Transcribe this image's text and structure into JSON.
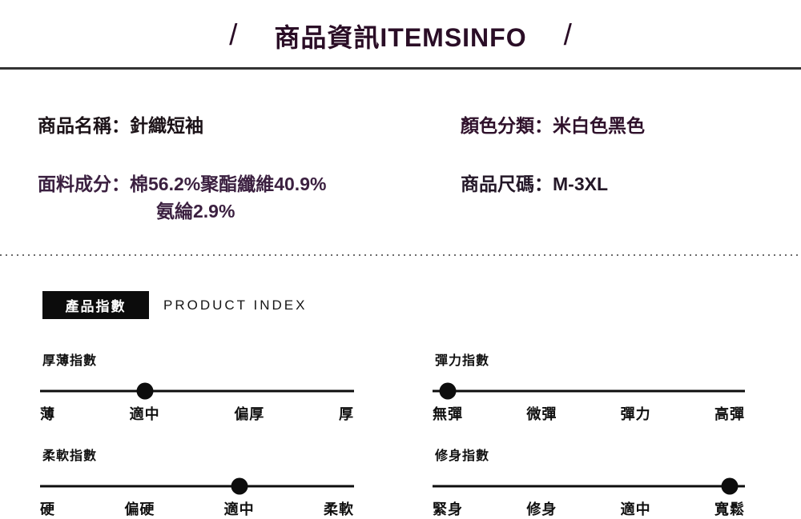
{
  "colors": {
    "title": "#2a0d26",
    "product_name_text": "#1b1217",
    "color_category_text": "#2f112b",
    "fabric_text": "#3b2040",
    "size_text": "#241828",
    "badge_background": "#0c0c0c",
    "badge_text": "#ffffff",
    "divider_line": "#333333",
    "dotted_line": "#6b6b6b",
    "slider": "#0d0d0d"
  },
  "header": {
    "left_slash": "/",
    "title": "商品資訊ITEMSINFO",
    "right_slash": "/"
  },
  "info": {
    "product_name": "商品名稱：針織短袖",
    "color_category": "顏色分類：米白色黑色",
    "fabric_line1": "面料成分：棉56.2%聚酯纖維40.9%",
    "fabric_line2": "氨綸2.9%",
    "size": "商品尺碼：M-3XL"
  },
  "product_index": {
    "badge_label": "產品指數",
    "subtitle": "PRODUCT INDEX",
    "sliders": [
      {
        "title": "厚薄指數",
        "labels": [
          "薄",
          "適中",
          "偏厚",
          "厚"
        ],
        "selected_index": 1,
        "selected_label": "適中"
      },
      {
        "title": "彈力指數",
        "labels": [
          "無彈",
          "微彈",
          "彈力",
          "高彈"
        ],
        "selected_index": 0,
        "selected_label": "無彈"
      },
      {
        "title": "柔軟指數",
        "labels": [
          "硬",
          "偏硬",
          "適中",
          "柔軟"
        ],
        "selected_index": 2,
        "selected_label": "適中"
      },
      {
        "title": "修身指數",
        "labels": [
          "緊身",
          "修身",
          "適中",
          "寬鬆"
        ],
        "selected_index": 3,
        "selected_label": "寬鬆"
      }
    ]
  }
}
